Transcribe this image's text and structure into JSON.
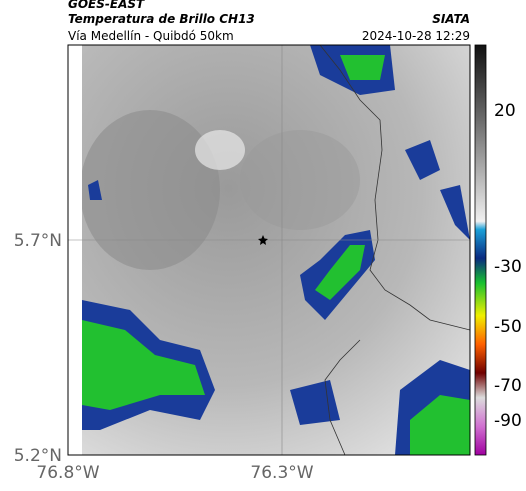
{
  "header": {
    "title": "GOES-EAST",
    "subtitle": "Temperatura de Brillo CH13",
    "location": "Vía Medellín - Quibdó 50km",
    "source": "SIATA",
    "datetime": "2024-10-28 12:29"
  },
  "map": {
    "lat_ticks": [
      "5.7°N",
      "5.2°N"
    ],
    "lon_ticks": [
      "76.8°W",
      "76.3°W"
    ]
  },
  "colorbar": {
    "ticks": [
      "20",
      "-30",
      "-50",
      "-70",
      "-90"
    ]
  }
}
